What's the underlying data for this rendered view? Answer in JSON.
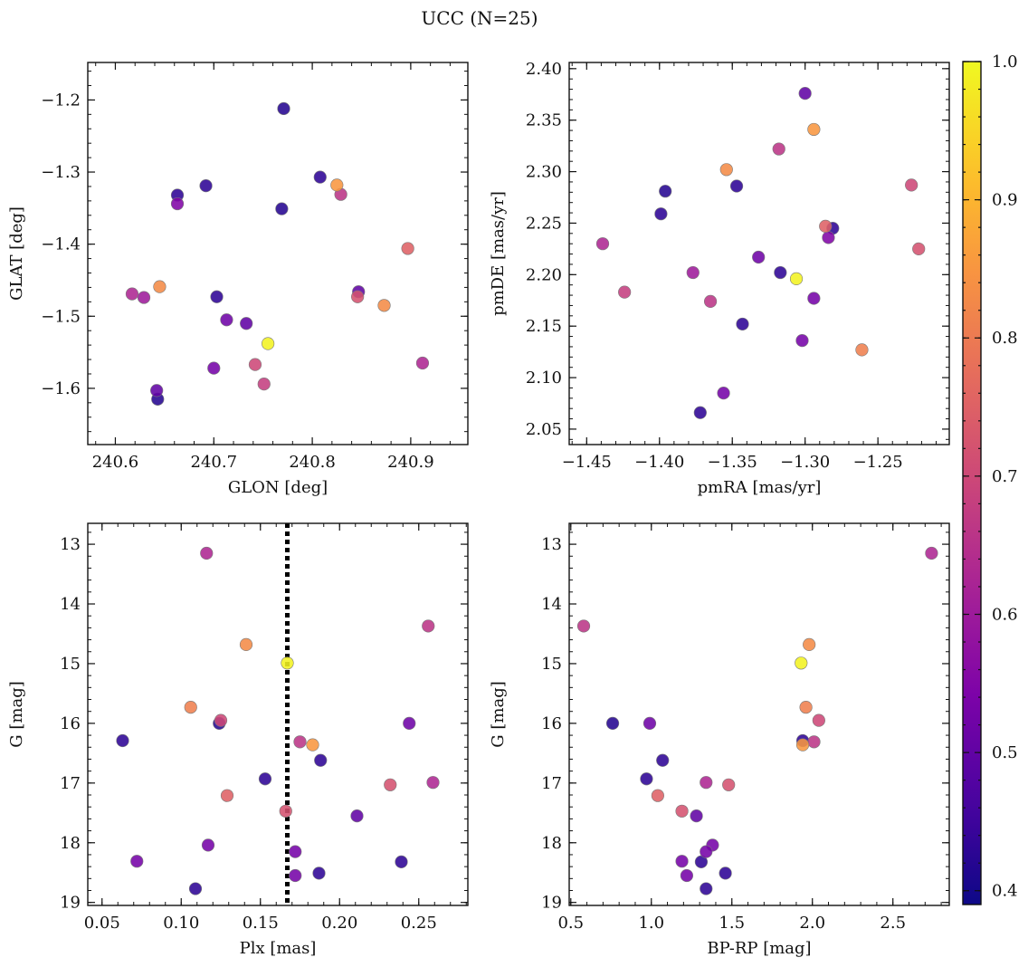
{
  "figure": {
    "title": "UCC (N=25)"
  },
  "colorbar": {
    "cmap": "plasma",
    "vmin": 0.39,
    "vmax": 1.0,
    "ticks": [
      0.4,
      0.5,
      0.6,
      0.7,
      0.8,
      0.9,
      1.0
    ],
    "tick_labels": [
      "0.4",
      "0.5",
      "0.6",
      "0.7",
      "0.8",
      "0.9",
      "1.0"
    ]
  },
  "chart_data": [
    {
      "type": "scatter",
      "id": "glon-glat",
      "xlabel": "GLON [deg]",
      "ylabel": "GLAT [deg]",
      "xlim": [
        240.572,
        240.958
      ],
      "ylim": [
        -1.678,
        -1.148
      ],
      "y_inverted": false,
      "xticks": [
        240.6,
        240.7,
        240.8,
        240.9
      ],
      "xtick_labels": [
        "240.6",
        "240.7",
        "240.8",
        "240.9"
      ],
      "xminor_step": 0.02,
      "yticks": [
        -1.6,
        -1.5,
        -1.4,
        -1.3,
        -1.2
      ],
      "ytick_labels": [
        "−1.6",
        "−1.5",
        "−1.4",
        "−1.3",
        "−1.2"
      ],
      "yminor_step": 0.02,
      "vline": null,
      "points": [
        {
          "x": 240.771,
          "y": -1.212,
          "c": 0.42
        },
        {
          "x": 240.808,
          "y": -1.307,
          "c": 0.43
        },
        {
          "x": 240.825,
          "y": -1.318,
          "c": 0.85
        },
        {
          "x": 240.692,
          "y": -1.319,
          "c": 0.43
        },
        {
          "x": 240.829,
          "y": -1.331,
          "c": 0.66
        },
        {
          "x": 240.663,
          "y": -1.332,
          "c": 0.43
        },
        {
          "x": 240.663,
          "y": -1.344,
          "c": 0.55
        },
        {
          "x": 240.769,
          "y": -1.351,
          "c": 0.42
        },
        {
          "x": 240.897,
          "y": -1.406,
          "c": 0.75
        },
        {
          "x": 240.645,
          "y": -1.459,
          "c": 0.83
        },
        {
          "x": 240.847,
          "y": -1.466,
          "c": 0.5
        },
        {
          "x": 240.617,
          "y": -1.469,
          "c": 0.63
        },
        {
          "x": 240.846,
          "y": -1.473,
          "c": 0.72
        },
        {
          "x": 240.629,
          "y": -1.474,
          "c": 0.6
        },
        {
          "x": 240.703,
          "y": -1.473,
          "c": 0.43
        },
        {
          "x": 240.873,
          "y": -1.485,
          "c": 0.83
        },
        {
          "x": 240.713,
          "y": -1.505,
          "c": 0.52
        },
        {
          "x": 240.733,
          "y": -1.51,
          "c": 0.5
        },
        {
          "x": 240.755,
          "y": -1.538,
          "c": 0.99
        },
        {
          "x": 240.912,
          "y": -1.565,
          "c": 0.63
        },
        {
          "x": 240.742,
          "y": -1.567,
          "c": 0.7
        },
        {
          "x": 240.7,
          "y": -1.572,
          "c": 0.53
        },
        {
          "x": 240.751,
          "y": -1.594,
          "c": 0.68
        },
        {
          "x": 240.642,
          "y": -1.603,
          "c": 0.5
        },
        {
          "x": 240.643,
          "y": -1.615,
          "c": 0.42
        }
      ]
    },
    {
      "type": "scatter",
      "id": "pmra-pmde",
      "xlabel": "pmRA [mas/yr]",
      "ylabel": "pmDE [mas/yr]",
      "xlim": [
        -1.462,
        -1.201
      ],
      "ylim": [
        2.035,
        2.406
      ],
      "y_inverted": false,
      "xticks": [
        -1.45,
        -1.4,
        -1.35,
        -1.3,
        -1.25
      ],
      "xtick_labels": [
        "−1.45",
        "−1.40",
        "−1.35",
        "−1.30",
        "−1.25"
      ],
      "xminor_step": 0.01,
      "yticks": [
        2.05,
        2.1,
        2.15,
        2.2,
        2.25,
        2.3,
        2.35,
        2.4
      ],
      "ytick_labels": [
        "2.05",
        "2.10",
        "2.15",
        "2.20",
        "2.25",
        "2.30",
        "2.35",
        "2.40"
      ],
      "yminor_step": 0.01,
      "vline": null,
      "points": [
        {
          "x": -1.3,
          "y": 2.376,
          "c": 0.5
        },
        {
          "x": -1.294,
          "y": 2.341,
          "c": 0.85
        },
        {
          "x": -1.318,
          "y": 2.322,
          "c": 0.66
        },
        {
          "x": -1.354,
          "y": 2.302,
          "c": 0.83
        },
        {
          "x": -1.227,
          "y": 2.287,
          "c": 0.7
        },
        {
          "x": -1.347,
          "y": 2.286,
          "c": 0.43
        },
        {
          "x": -1.396,
          "y": 2.281,
          "c": 0.42
        },
        {
          "x": -1.399,
          "y": 2.259,
          "c": 0.43
        },
        {
          "x": -1.286,
          "y": 2.247,
          "c": 0.75
        },
        {
          "x": -1.281,
          "y": 2.245,
          "c": 0.43
        },
        {
          "x": -1.284,
          "y": 2.236,
          "c": 0.55
        },
        {
          "x": -1.439,
          "y": 2.23,
          "c": 0.63
        },
        {
          "x": -1.222,
          "y": 2.225,
          "c": 0.72
        },
        {
          "x": -1.332,
          "y": 2.217,
          "c": 0.52
        },
        {
          "x": -1.317,
          "y": 2.202,
          "c": 0.43
        },
        {
          "x": -1.377,
          "y": 2.202,
          "c": 0.6
        },
        {
          "x": -1.306,
          "y": 2.196,
          "c": 0.99
        },
        {
          "x": -1.424,
          "y": 2.183,
          "c": 0.68
        },
        {
          "x": -1.294,
          "y": 2.177,
          "c": 0.53
        },
        {
          "x": -1.365,
          "y": 2.174,
          "c": 0.66
        },
        {
          "x": -1.343,
          "y": 2.152,
          "c": 0.43
        },
        {
          "x": -1.302,
          "y": 2.136,
          "c": 0.53
        },
        {
          "x": -1.261,
          "y": 2.127,
          "c": 0.81
        },
        {
          "x": -1.356,
          "y": 2.085,
          "c": 0.53
        },
        {
          "x": -1.372,
          "y": 2.066,
          "c": 0.43
        }
      ]
    },
    {
      "type": "scatter",
      "id": "plx-g",
      "xlabel": "Plx [mas]",
      "ylabel": "G [mag]",
      "xlim": [
        0.041,
        0.281
      ],
      "ylim": [
        12.65,
        19.05
      ],
      "y_inverted": true,
      "xticks": [
        0.05,
        0.1,
        0.15,
        0.2,
        0.25
      ],
      "xtick_labels": [
        "0.05",
        "0.10",
        "0.15",
        "0.20",
        "0.25"
      ],
      "xminor_step": 0.01,
      "yticks": [
        13,
        14,
        15,
        16,
        17,
        18,
        19
      ],
      "ytick_labels": [
        "13",
        "14",
        "15",
        "16",
        "17",
        "18",
        "19"
      ],
      "yminor_step": 0.2,
      "vline": {
        "x": 0.167,
        "style": "dotted"
      },
      "points": [
        {
          "x": 0.116,
          "y": 13.15,
          "c": 0.63
        },
        {
          "x": 0.256,
          "y": 14.37,
          "c": 0.66
        },
        {
          "x": 0.141,
          "y": 14.68,
          "c": 0.83
        },
        {
          "x": 0.167,
          "y": 14.99,
          "c": 0.99
        },
        {
          "x": 0.106,
          "y": 15.73,
          "c": 0.81
        },
        {
          "x": 0.125,
          "y": 15.95,
          "c": 0.7
        },
        {
          "x": 0.124,
          "y": 16.0,
          "c": 0.42
        },
        {
          "x": 0.244,
          "y": 16.0,
          "c": 0.52
        },
        {
          "x": 0.063,
          "y": 16.29,
          "c": 0.43
        },
        {
          "x": 0.175,
          "y": 16.31,
          "c": 0.66
        },
        {
          "x": 0.183,
          "y": 16.36,
          "c": 0.85
        },
        {
          "x": 0.188,
          "y": 16.62,
          "c": 0.43
        },
        {
          "x": 0.153,
          "y": 16.93,
          "c": 0.43
        },
        {
          "x": 0.259,
          "y": 16.99,
          "c": 0.63
        },
        {
          "x": 0.232,
          "y": 17.03,
          "c": 0.72
        },
        {
          "x": 0.129,
          "y": 17.21,
          "c": 0.75
        },
        {
          "x": 0.166,
          "y": 17.47,
          "c": 0.72
        },
        {
          "x": 0.211,
          "y": 17.55,
          "c": 0.5
        },
        {
          "x": 0.117,
          "y": 18.04,
          "c": 0.53
        },
        {
          "x": 0.172,
          "y": 18.15,
          "c": 0.53
        },
        {
          "x": 0.072,
          "y": 18.31,
          "c": 0.53
        },
        {
          "x": 0.239,
          "y": 18.32,
          "c": 0.43
        },
        {
          "x": 0.187,
          "y": 18.51,
          "c": 0.43
        },
        {
          "x": 0.172,
          "y": 18.55,
          "c": 0.53
        },
        {
          "x": 0.109,
          "y": 18.77,
          "c": 0.43
        }
      ]
    },
    {
      "type": "scatter",
      "id": "bprp-g",
      "xlabel": "BP-RP [mag]",
      "ylabel": "G [mag]",
      "xlim": [
        0.49,
        2.85
      ],
      "ylim": [
        12.65,
        19.05
      ],
      "y_inverted": true,
      "xticks": [
        0.5,
        1.0,
        1.5,
        2.0,
        2.5
      ],
      "xtick_labels": [
        "0.5",
        "1.0",
        "1.5",
        "2.0",
        "2.5"
      ],
      "xminor_step": 0.1,
      "yticks": [
        13,
        14,
        15,
        16,
        17,
        18,
        19
      ],
      "ytick_labels": [
        "13",
        "14",
        "15",
        "16",
        "17",
        "18",
        "19"
      ],
      "yminor_step": 0.2,
      "vline": null,
      "points": [
        {
          "x": 2.74,
          "y": 13.15,
          "c": 0.63
        },
        {
          "x": 0.58,
          "y": 14.37,
          "c": 0.66
        },
        {
          "x": 1.98,
          "y": 14.68,
          "c": 0.83
        },
        {
          "x": 1.93,
          "y": 14.99,
          "c": 0.99
        },
        {
          "x": 1.96,
          "y": 15.73,
          "c": 0.81
        },
        {
          "x": 2.04,
          "y": 15.95,
          "c": 0.7
        },
        {
          "x": 0.76,
          "y": 16.0,
          "c": 0.42
        },
        {
          "x": 0.99,
          "y": 16.0,
          "c": 0.52
        },
        {
          "x": 1.94,
          "y": 16.29,
          "c": 0.43
        },
        {
          "x": 2.01,
          "y": 16.31,
          "c": 0.66
        },
        {
          "x": 1.94,
          "y": 16.36,
          "c": 0.85
        },
        {
          "x": 1.07,
          "y": 16.62,
          "c": 0.43
        },
        {
          "x": 0.97,
          "y": 16.93,
          "c": 0.43
        },
        {
          "x": 1.34,
          "y": 16.99,
          "c": 0.63
        },
        {
          "x": 1.48,
          "y": 17.03,
          "c": 0.72
        },
        {
          "x": 1.04,
          "y": 17.21,
          "c": 0.75
        },
        {
          "x": 1.19,
          "y": 17.47,
          "c": 0.72
        },
        {
          "x": 1.28,
          "y": 17.55,
          "c": 0.5
        },
        {
          "x": 1.38,
          "y": 18.04,
          "c": 0.53
        },
        {
          "x": 1.34,
          "y": 18.15,
          "c": 0.53
        },
        {
          "x": 1.19,
          "y": 18.31,
          "c": 0.53
        },
        {
          "x": 1.31,
          "y": 18.32,
          "c": 0.43
        },
        {
          "x": 1.46,
          "y": 18.51,
          "c": 0.43
        },
        {
          "x": 1.22,
          "y": 18.55,
          "c": 0.53
        },
        {
          "x": 1.34,
          "y": 18.77,
          "c": 0.43
        }
      ]
    }
  ]
}
